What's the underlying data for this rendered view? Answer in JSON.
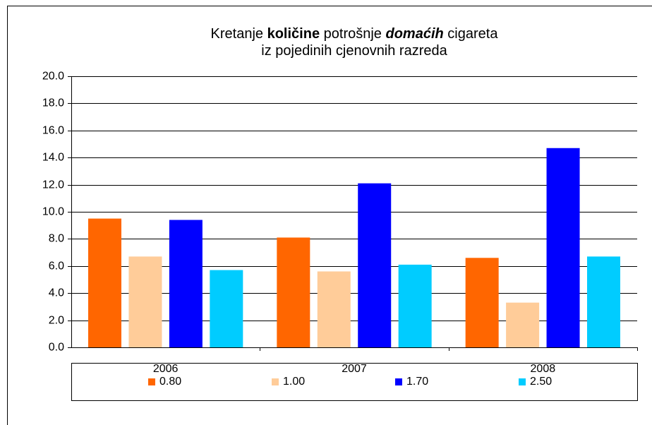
{
  "chart_data": {
    "type": "bar",
    "title": [
      [
        "Kretanje",
        "količine",
        "potrošnje",
        "domaćih",
        "cigareta"
      ],
      [
        "iz pojedinih cjenovnih razreda"
      ]
    ],
    "categories": [
      "2006",
      "2007",
      "2008"
    ],
    "series": [
      {
        "name": "0.80",
        "color": "#ff6600",
        "values": [
          9.5,
          8.1,
          6.6
        ]
      },
      {
        "name": "1.00",
        "color": "#ffcc99",
        "values": [
          6.7,
          5.6,
          3.3
        ]
      },
      {
        "name": "1.70",
        "color": "#0000ff",
        "values": [
          9.4,
          12.1,
          14.7
        ]
      },
      {
        "name": "2.50",
        "color": "#00ccff",
        "values": [
          5.7,
          6.1,
          6.7
        ]
      }
    ],
    "ylim": [
      0,
      20
    ],
    "yticks": [
      {
        "value": 0,
        "label": "0.0"
      },
      {
        "value": 2,
        "label": "2.0"
      },
      {
        "value": 4,
        "label": "4.0"
      },
      {
        "value": 6,
        "label": "6.0"
      },
      {
        "value": 8,
        "label": "8.0"
      },
      {
        "value": 10,
        "label": "10.0"
      },
      {
        "value": 12,
        "label": "12.0"
      },
      {
        "value": 14,
        "label": "14.0"
      },
      {
        "value": 16,
        "label": "16.0"
      },
      {
        "value": 18,
        "label": "18.0"
      },
      {
        "value": 20,
        "label": "20.0"
      }
    ],
    "grid": true,
    "legend": "bottom"
  }
}
